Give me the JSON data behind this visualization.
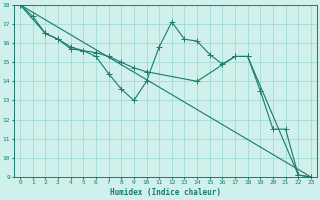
{
  "xlabel": "Humidex (Indice chaleur)",
  "bg_color": "#cff0eb",
  "grid_color": "#a8ddd8",
  "line_color": "#1a7a6e",
  "xlim": [
    -0.5,
    23.5
  ],
  "ylim": [
    9,
    18
  ],
  "xticks": [
    0,
    1,
    2,
    3,
    4,
    5,
    6,
    7,
    8,
    9,
    10,
    11,
    12,
    13,
    14,
    15,
    16,
    17,
    18,
    19,
    20,
    21,
    22,
    23
  ],
  "yticks": [
    9,
    10,
    11,
    12,
    13,
    14,
    15,
    16,
    17,
    18
  ],
  "series1": [
    [
      0,
      18.0
    ],
    [
      1,
      17.4
    ],
    [
      2,
      16.5
    ],
    [
      3,
      16.2
    ],
    [
      4,
      15.7
    ],
    [
      5,
      15.6
    ],
    [
      6,
      15.3
    ],
    [
      7,
      14.4
    ],
    [
      8,
      13.6
    ],
    [
      9,
      13.0
    ],
    [
      10,
      14.0
    ],
    [
      11,
      15.8
    ],
    [
      12,
      17.1
    ],
    [
      13,
      16.2
    ],
    [
      14,
      16.1
    ],
    [
      15,
      15.4
    ],
    [
      16,
      14.9
    ],
    [
      17,
      15.3
    ],
    [
      18,
      15.3
    ],
    [
      19,
      13.5
    ],
    [
      20,
      11.5
    ],
    [
      21,
      11.5
    ],
    [
      22,
      9.1
    ],
    [
      23,
      9.0
    ]
  ],
  "series2": [
    [
      0,
      18.0
    ],
    [
      2,
      16.5
    ],
    [
      3,
      16.2
    ],
    [
      4,
      15.8
    ],
    [
      5,
      15.6
    ],
    [
      6,
      15.5
    ],
    [
      7,
      15.3
    ],
    [
      8,
      15.0
    ],
    [
      9,
      14.7
    ],
    [
      10,
      14.5
    ],
    [
      14,
      14.0
    ],
    [
      17,
      15.3
    ],
    [
      18,
      15.3
    ],
    [
      22,
      9.1
    ],
    [
      23,
      9.0
    ]
  ],
  "series3": [
    [
      0,
      18.0
    ],
    [
      23,
      9.0
    ]
  ]
}
